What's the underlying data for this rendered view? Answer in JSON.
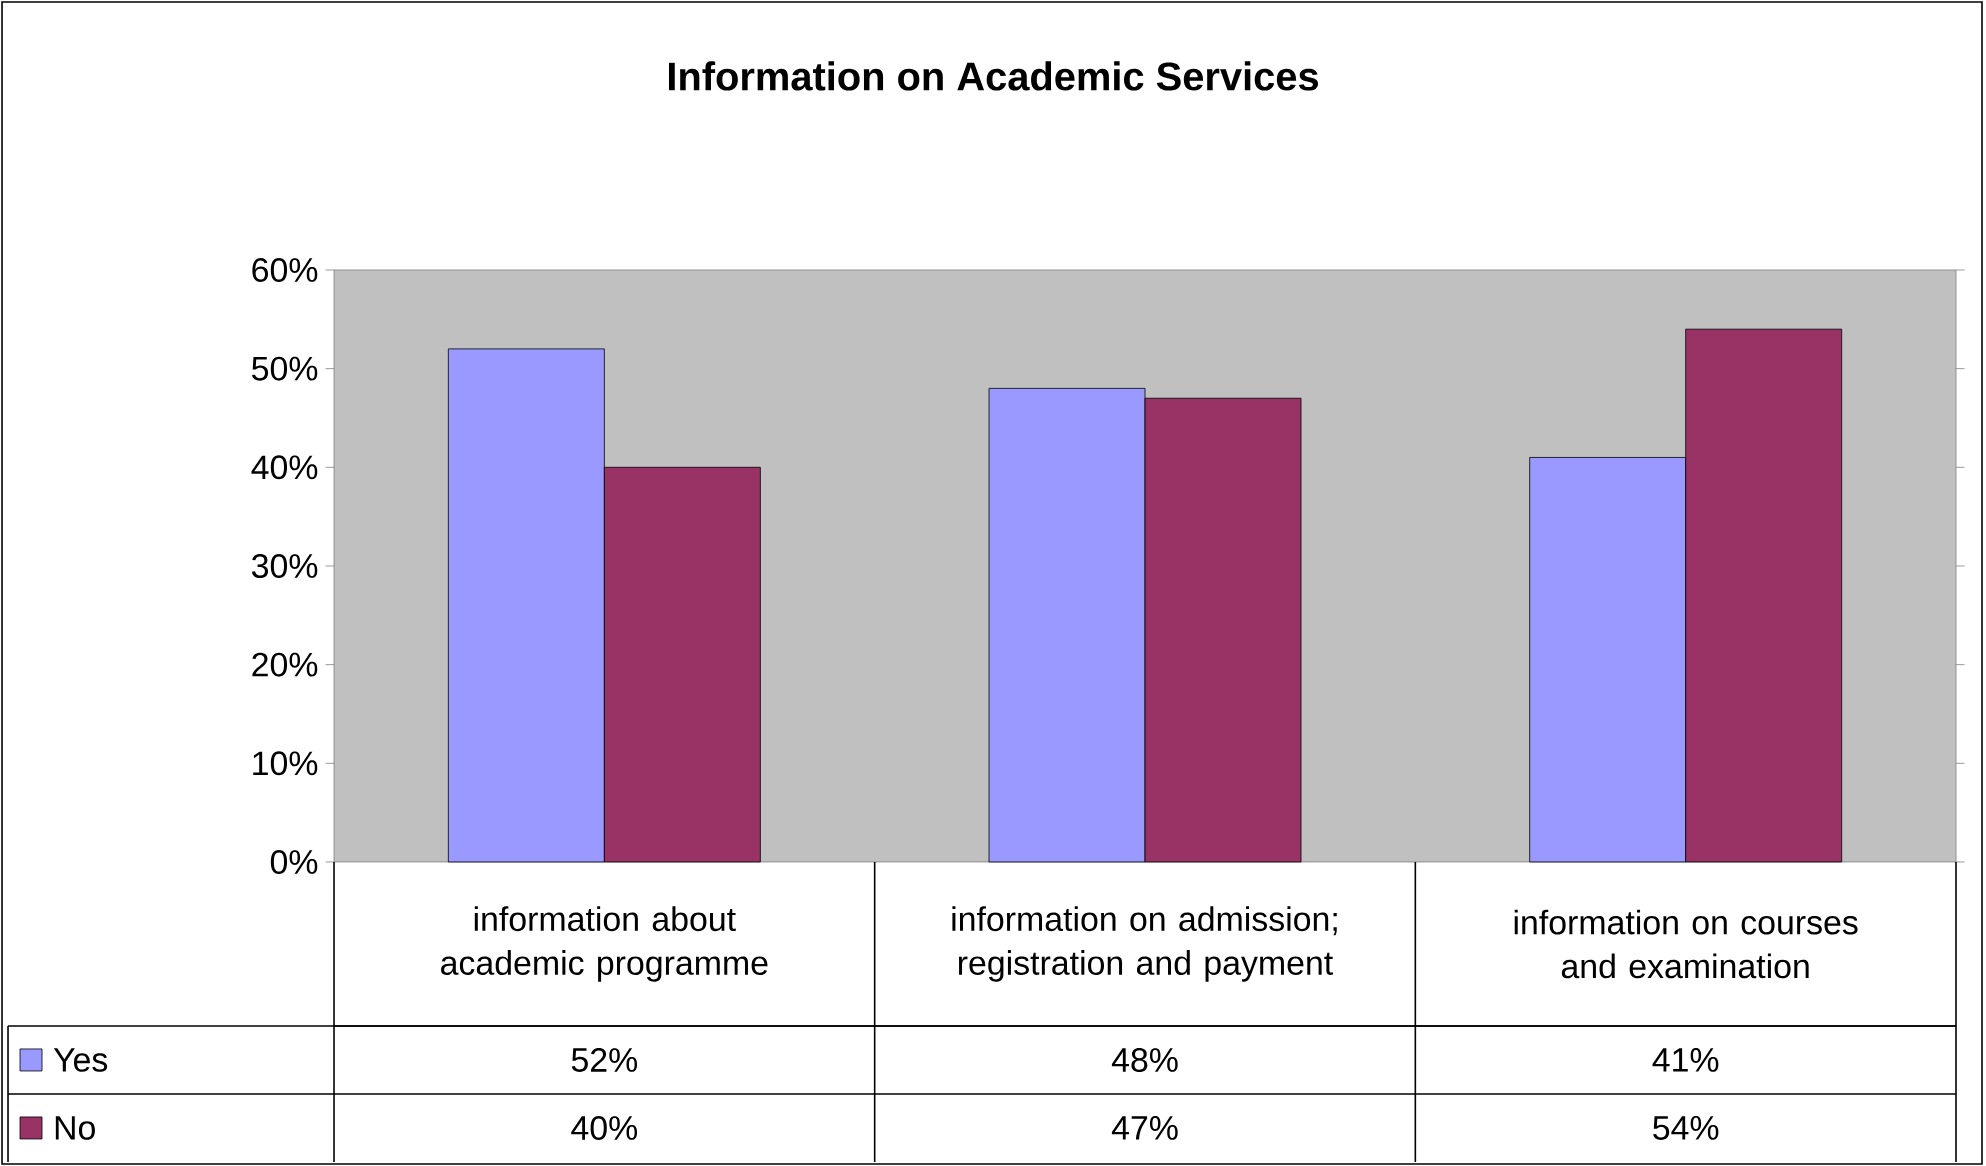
{
  "chart_data": {
    "type": "bar",
    "title": "Information on Academic Services",
    "categories": [
      "information about academic programme",
      "information on admission; registration and payment",
      "information on courses and examination"
    ],
    "series": [
      {
        "name": "Yes",
        "color": "#9999ff",
        "values": [
          52,
          48,
          41
        ],
        "value_labels": [
          "52%",
          "48%",
          "41%"
        ]
      },
      {
        "name": "No",
        "color": "#993366",
        "values": [
          40,
          47,
          54
        ],
        "value_labels": [
          "40%",
          "47%",
          "54%"
        ]
      }
    ],
    "ylim": [
      0,
      60
    ],
    "yticks": [
      {
        "value": 0,
        "label": "0%"
      },
      {
        "value": 10,
        "label": "10%"
      },
      {
        "value": 20,
        "label": "20%"
      },
      {
        "value": 30,
        "label": "30%"
      },
      {
        "value": 40,
        "label": "40%"
      },
      {
        "value": 50,
        "label": "50%"
      },
      {
        "value": 60,
        "label": "60%"
      }
    ],
    "legend": "bottom left"
  }
}
